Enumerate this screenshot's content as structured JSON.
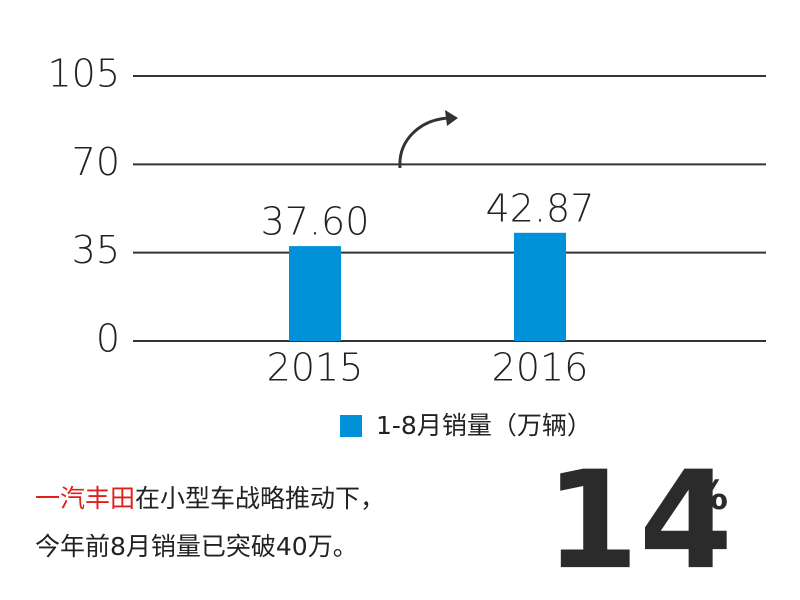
{
  "chart_data": {
    "type": "bar",
    "categories": [
      "2015",
      "2016"
    ],
    "series": [
      {
        "name": "1-8月销量（万辆）",
        "color": "#0091d9",
        "values": [
          37.6,
          42.87
        ]
      }
    ],
    "value_labels": [
      "37.60",
      "42.87"
    ],
    "ylim": [
      0,
      105
    ],
    "yticks": [
      0,
      35,
      70,
      105
    ],
    "grid": true
  },
  "caption": {
    "highlight": "一汽丰田",
    "line1": "在小型车战略推动下，",
    "line2": "今年前8月销量已突破40万。",
    "growth": "14",
    "growth_unit": "%"
  }
}
